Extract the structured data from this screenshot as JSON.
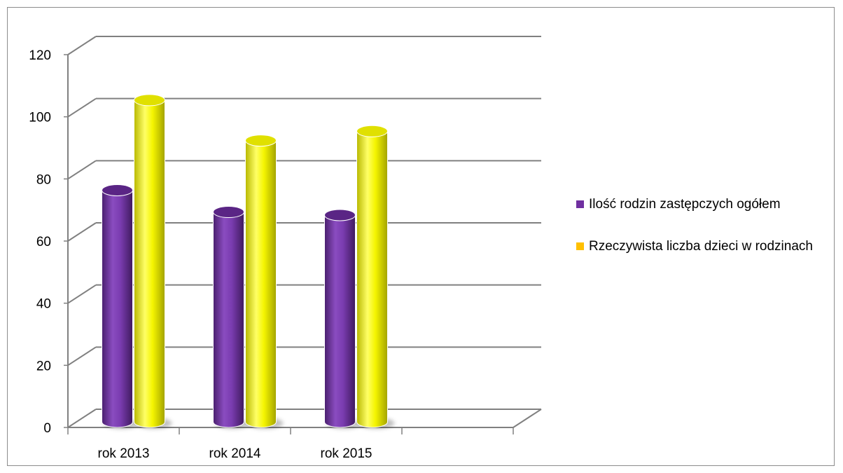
{
  "chart_data": {
    "type": "bar",
    "style": "3d-cylinder",
    "categories": [
      "rok 2013",
      "rok 2014",
      "rok 2015"
    ],
    "series": [
      {
        "name": "Ilość rodzin zastępczych ogółem",
        "color": "#7030a0",
        "values": [
          75,
          68,
          67
        ]
      },
      {
        "name": "Rzeczywista liczba dzieci w rodzinach",
        "color": "#ffff00",
        "values": [
          104,
          91,
          94
        ]
      }
    ],
    "yticks": [
      "0",
      "20",
      "40",
      "60",
      "80",
      "100",
      "120"
    ],
    "ylim": [
      0,
      120
    ],
    "grid": true,
    "legend_position": "right",
    "legend_swatch_colors": [
      "#7030a0",
      "#ffc000"
    ]
  }
}
